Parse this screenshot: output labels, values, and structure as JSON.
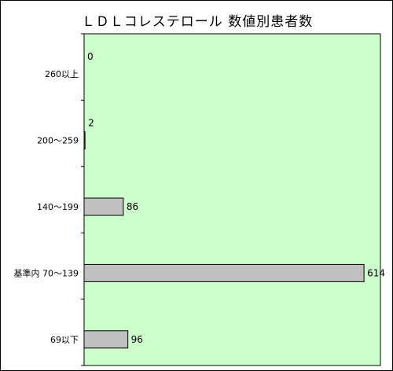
{
  "chart_data": {
    "type": "bar",
    "orientation": "horizontal",
    "title": "ＬＤＬコレステロール 数値別患者数",
    "categories": [
      "260以上",
      "200～259",
      "140～199",
      "基準内 70～139",
      "69以下"
    ],
    "values": [
      0,
      2,
      86,
      614,
      96
    ],
    "xlabel": "",
    "ylabel": "",
    "xlim": [
      0,
      650
    ],
    "grid": false,
    "legend": "none",
    "colors": {
      "plot_background": "#ccffcc",
      "bar_fill": "#c0c0c0",
      "bar_stroke": "#000000"
    }
  }
}
